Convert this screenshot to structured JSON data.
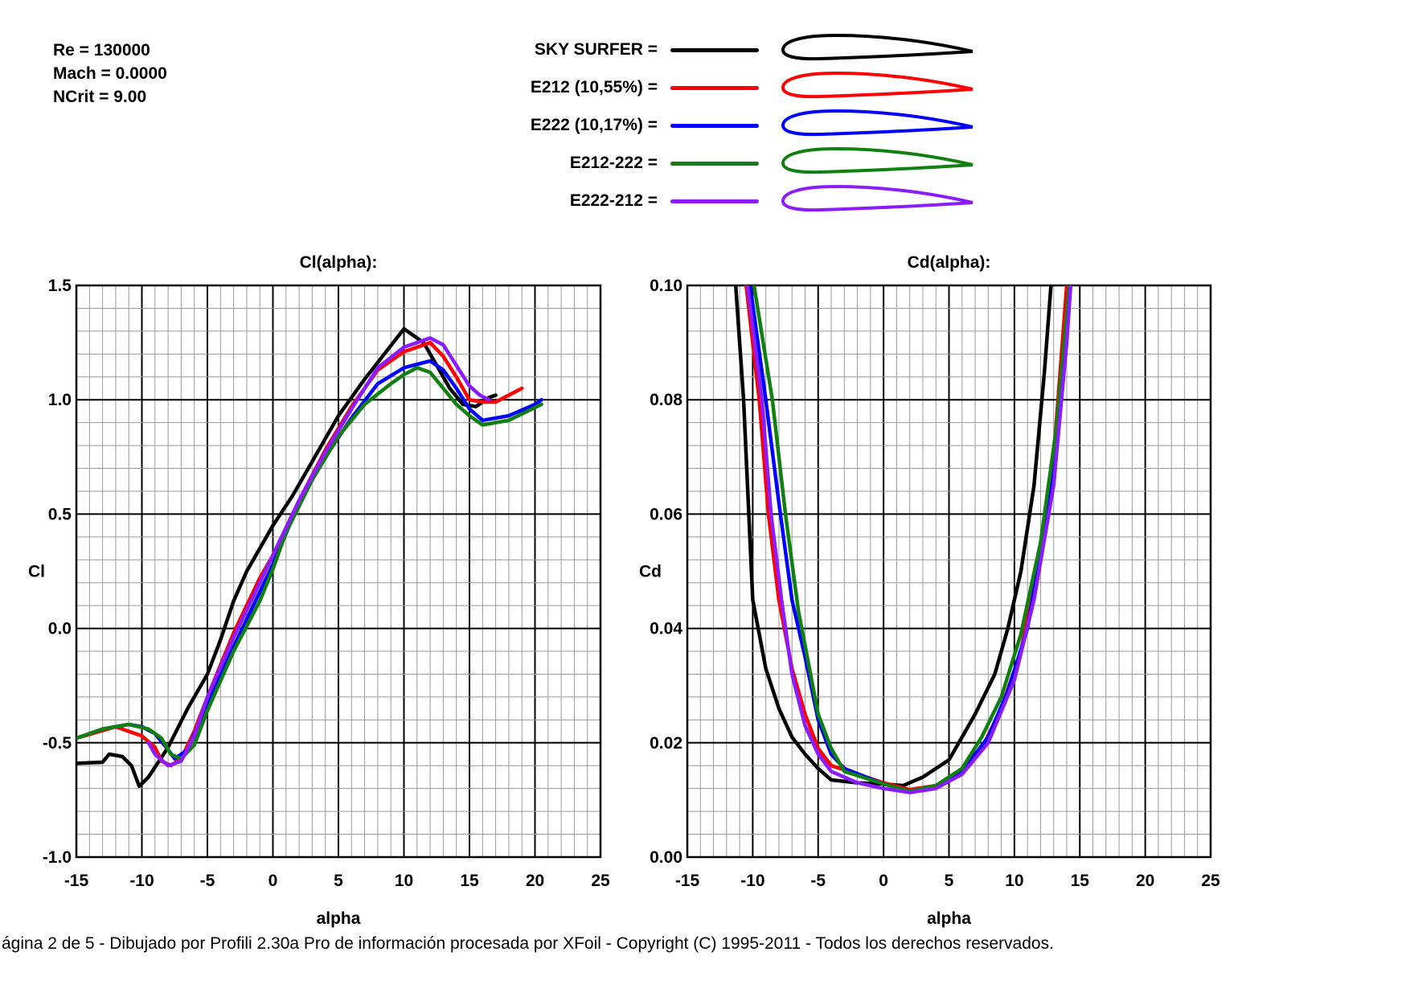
{
  "params": {
    "re": "Re = 130000",
    "mach": "Mach = 0.0000",
    "ncrit": "NCrit = 9.00"
  },
  "legend": [
    {
      "label": "SKY SURFER =",
      "color": "#000000",
      "icon": "airfoil-profile"
    },
    {
      "label": "E212  (10,55%) =",
      "color": "#ff0000",
      "icon": "airfoil-profile"
    },
    {
      "label": "E222  (10,17%) =",
      "color": "#0000ff",
      "icon": "airfoil-profile"
    },
    {
      "label": "E212-222 =",
      "color": "#108010",
      "icon": "airfoil-profile"
    },
    {
      "label": "E222-212 =",
      "color": "#8a1cff",
      "icon": "airfoil-profile"
    }
  ],
  "footer": "ágina 2 de 5 - Dibujado por Profili 2.30a Pro de información procesada por XFoil - Copyright (C) 1995-2011 - Todos los derechos reservados.",
  "chart_data": [
    {
      "type": "line",
      "title": "Cl(alpha):",
      "xlabel": "alpha",
      "ylabel": "Cl",
      "xlim": [
        -15,
        25
      ],
      "ylim": [
        -1.0,
        1.5
      ],
      "xticks": [
        "-15",
        "-10",
        "-5",
        "0",
        "5",
        "10",
        "15",
        "20",
        "25"
      ],
      "yticks": [
        "1.5",
        "1.0",
        "0.5",
        "0.0",
        "-0.5",
        "-1.0"
      ],
      "grid": true,
      "series": [
        {
          "name": "SKY SURFER",
          "color": "#000000",
          "points": [
            [
              -15,
              -0.59
            ],
            [
              -13,
              -0.585
            ],
            [
              -12.5,
              -0.55
            ],
            [
              -11.5,
              -0.56
            ],
            [
              -10.8,
              -0.6
            ],
            [
              -10.2,
              -0.69
            ],
            [
              -9.5,
              -0.65
            ],
            [
              -8,
              -0.52
            ],
            [
              -6.5,
              -0.35
            ],
            [
              -5,
              -0.2
            ],
            [
              -4,
              -0.05
            ],
            [
              -3,
              0.12
            ],
            [
              -2,
              0.25
            ],
            [
              0,
              0.45
            ],
            [
              1.5,
              0.58
            ],
            [
              3,
              0.73
            ],
            [
              5,
              0.93
            ],
            [
              7,
              1.09
            ],
            [
              8.5,
              1.2
            ],
            [
              10,
              1.31
            ],
            [
              11.5,
              1.25
            ],
            [
              12.5,
              1.15
            ],
            [
              13.5,
              1.05
            ],
            [
              14.5,
              0.98
            ],
            [
              15.5,
              0.97
            ],
            [
              16.5,
              1.01
            ],
            [
              17,
              1.02
            ]
          ]
        },
        {
          "name": "E212  (10,55%)",
          "color": "#ff0000",
          "points": [
            [
              -15,
              -0.48
            ],
            [
              -12,
              -0.43
            ],
            [
              -11,
              -0.45
            ],
            [
              -10,
              -0.47
            ],
            [
              -9,
              -0.52
            ],
            [
              -8.5,
              -0.58
            ],
            [
              -7.8,
              -0.6
            ],
            [
              -7,
              -0.57
            ],
            [
              -6,
              -0.45
            ],
            [
              -5,
              -0.3
            ],
            [
              -3,
              -0.02
            ],
            [
              -1,
              0.22
            ],
            [
              0,
              0.32
            ],
            [
              2,
              0.56
            ],
            [
              4,
              0.78
            ],
            [
              6,
              0.97
            ],
            [
              8,
              1.13
            ],
            [
              10,
              1.21
            ],
            [
              12,
              1.25
            ],
            [
              13,
              1.19
            ],
            [
              14,
              1.1
            ],
            [
              15,
              1.0
            ],
            [
              16,
              0.99
            ],
            [
              17,
              0.99
            ],
            [
              18,
              1.02
            ],
            [
              19,
              1.05
            ]
          ]
        },
        {
          "name": "E222  (10,17%)",
          "color": "#0000ff",
          "points": [
            [
              -15,
              -0.48
            ],
            [
              -13,
              -0.44
            ],
            [
              -11,
              -0.42
            ],
            [
              -10,
              -0.43
            ],
            [
              -9,
              -0.46
            ],
            [
              -8,
              -0.53
            ],
            [
              -7.5,
              -0.57
            ],
            [
              -6.5,
              -0.53
            ],
            [
              -5,
              -0.33
            ],
            [
              -3,
              -0.08
            ],
            [
              -1,
              0.16
            ],
            [
              0,
              0.28
            ],
            [
              2,
              0.55
            ],
            [
              4,
              0.75
            ],
            [
              6,
              0.92
            ],
            [
              8,
              1.07
            ],
            [
              10,
              1.14
            ],
            [
              12,
              1.17
            ],
            [
              13,
              1.13
            ],
            [
              14,
              1.05
            ],
            [
              15,
              0.96
            ],
            [
              16,
              0.91
            ],
            [
              18,
              0.93
            ],
            [
              20,
              0.98
            ],
            [
              20.5,
              1.0
            ]
          ]
        },
        {
          "name": "E212-222",
          "color": "#108010",
          "points": [
            [
              -15,
              -0.48
            ],
            [
              -13,
              -0.44
            ],
            [
              -11,
              -0.42
            ],
            [
              -9.5,
              -0.44
            ],
            [
              -8.5,
              -0.48
            ],
            [
              -7.8,
              -0.55
            ],
            [
              -7,
              -0.57
            ],
            [
              -6,
              -0.51
            ],
            [
              -5,
              -0.36
            ],
            [
              -3,
              -0.1
            ],
            [
              -1,
              0.12
            ],
            [
              0,
              0.26
            ],
            [
              1,
              0.42
            ],
            [
              3,
              0.65
            ],
            [
              5,
              0.84
            ],
            [
              7,
              0.98
            ],
            [
              9,
              1.07
            ],
            [
              10,
              1.11
            ],
            [
              11,
              1.14
            ],
            [
              12,
              1.12
            ],
            [
              13,
              1.05
            ],
            [
              14,
              0.98
            ],
            [
              15,
              0.93
            ],
            [
              16,
              0.89
            ],
            [
              18,
              0.91
            ],
            [
              20.5,
              0.98
            ]
          ]
        },
        {
          "name": "E222-212",
          "color": "#8a1cff",
          "points": [
            [
              -9.5,
              -0.5
            ],
            [
              -9,
              -0.55
            ],
            [
              -8,
              -0.6
            ],
            [
              -7,
              -0.58
            ],
            [
              -6,
              -0.47
            ],
            [
              -5,
              -0.3
            ],
            [
              -3,
              -0.04
            ],
            [
              -1,
              0.2
            ],
            [
              0,
              0.32
            ],
            [
              2,
              0.56
            ],
            [
              4,
              0.77
            ],
            [
              6,
              0.96
            ],
            [
              8,
              1.14
            ],
            [
              10,
              1.23
            ],
            [
              12,
              1.27
            ],
            [
              13,
              1.24
            ],
            [
              14,
              1.15
            ],
            [
              15,
              1.06
            ],
            [
              15.8,
              1.02
            ],
            [
              16.5,
              1.0
            ]
          ]
        }
      ]
    },
    {
      "type": "line",
      "title": "Cd(alpha):",
      "xlabel": "alpha",
      "ylabel": "Cd",
      "xlim": [
        -15,
        25
      ],
      "ylim": [
        0.0,
        0.1
      ],
      "xticks": [
        "-15",
        "-10",
        "-5",
        "0",
        "5",
        "10",
        "15",
        "20",
        "25"
      ],
      "yticks": [
        "0.10",
        "0.08",
        "0.06",
        "0.04",
        "0.02",
        "0.00"
      ],
      "grid": true,
      "series": [
        {
          "name": "SKY SURFER",
          "color": "#000000",
          "points": [
            [
              -11.3,
              0.1
            ],
            [
              -10.7,
              0.08
            ],
            [
              -10.3,
              0.06
            ],
            [
              -10,
              0.045
            ],
            [
              -9,
              0.033
            ],
            [
              -8,
              0.026
            ],
            [
              -7,
              0.021
            ],
            [
              -6,
              0.018
            ],
            [
              -5,
              0.0155
            ],
            [
              -4,
              0.0135
            ],
            [
              -2,
              0.013
            ],
            [
              0,
              0.0128
            ],
            [
              1.5,
              0.0125
            ],
            [
              3,
              0.014
            ],
            [
              5,
              0.017
            ],
            [
              6,
              0.021
            ],
            [
              7,
              0.025
            ],
            [
              8.5,
              0.032
            ],
            [
              9.5,
              0.04
            ],
            [
              10.5,
              0.05
            ],
            [
              11.5,
              0.065
            ],
            [
              12.3,
              0.085
            ],
            [
              12.8,
              0.1
            ]
          ]
        },
        {
          "name": "E212  (10,55%)",
          "color": "#ff0000",
          "points": [
            [
              -10.5,
              0.1
            ],
            [
              -9.5,
              0.08
            ],
            [
              -8.8,
              0.06
            ],
            [
              -8,
              0.045
            ],
            [
              -7,
              0.033
            ],
            [
              -6,
              0.025
            ],
            [
              -5,
              0.019
            ],
            [
              -4,
              0.016
            ],
            [
              -2,
              0.0145
            ],
            [
              0,
              0.013
            ],
            [
              2,
              0.0118
            ],
            [
              4,
              0.0125
            ],
            [
              6,
              0.015
            ],
            [
              7.5,
              0.019
            ],
            [
              9,
              0.026
            ],
            [
              10.5,
              0.036
            ],
            [
              12,
              0.053
            ],
            [
              13,
              0.07
            ],
            [
              14,
              0.1
            ]
          ]
        },
        {
          "name": "E222  (10,17%)",
          "color": "#0000ff",
          "points": [
            [
              -10.2,
              0.1
            ],
            [
              -9,
              0.08
            ],
            [
              -8,
              0.062
            ],
            [
              -7,
              0.045
            ],
            [
              -6,
              0.035
            ],
            [
              -5,
              0.024
            ],
            [
              -4,
              0.018
            ],
            [
              -3,
              0.0155
            ],
            [
              0,
              0.0128
            ],
            [
              2,
              0.0115
            ],
            [
              4,
              0.0125
            ],
            [
              6,
              0.015
            ],
            [
              8,
              0.021
            ],
            [
              9.5,
              0.029
            ],
            [
              11,
              0.04
            ],
            [
              12.5,
              0.06
            ],
            [
              13.5,
              0.08
            ],
            [
              14.2,
              0.1
            ]
          ]
        },
        {
          "name": "E212-222",
          "color": "#108010",
          "points": [
            [
              -9.9,
              0.1
            ],
            [
              -8.5,
              0.08
            ],
            [
              -7.5,
              0.06
            ],
            [
              -6.5,
              0.043
            ],
            [
              -6,
              0.037
            ],
            [
              -5,
              0.025
            ],
            [
              -4,
              0.019
            ],
            [
              -3,
              0.015
            ],
            [
              0,
              0.0128
            ],
            [
              2,
              0.0115
            ],
            [
              4,
              0.0125
            ],
            [
              6,
              0.0155
            ],
            [
              7.5,
              0.021
            ],
            [
              9,
              0.028
            ],
            [
              10.5,
              0.039
            ],
            [
              12,
              0.055
            ],
            [
              13.2,
              0.075
            ],
            [
              14.2,
              0.1
            ]
          ]
        },
        {
          "name": "E222-212",
          "color": "#8a1cff",
          "points": [
            [
              -10.4,
              0.1
            ],
            [
              -9.3,
              0.08
            ],
            [
              -8.6,
              0.06
            ],
            [
              -7.8,
              0.045
            ],
            [
              -7,
              0.032
            ],
            [
              -6,
              0.023
            ],
            [
              -5,
              0.018
            ],
            [
              -4,
              0.015
            ],
            [
              -2,
              0.013
            ],
            [
              0,
              0.012
            ],
            [
              2,
              0.0113
            ],
            [
              4,
              0.012
            ],
            [
              6,
              0.0145
            ],
            [
              8,
              0.02
            ],
            [
              10,
              0.031
            ],
            [
              11.5,
              0.045
            ],
            [
              13,
              0.065
            ],
            [
              14,
              0.09
            ],
            [
              14.3,
              0.1
            ]
          ]
        }
      ]
    }
  ]
}
